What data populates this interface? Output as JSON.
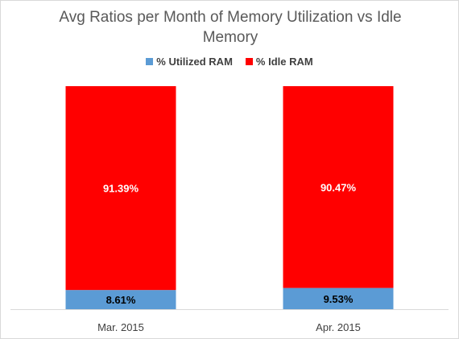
{
  "chart_data": {
    "type": "bar",
    "stacked": true,
    "title": "Avg Ratios per Month of Memory Utilization vs Idle Memory",
    "categories": [
      "Mar. 2015",
      "Apr. 2015"
    ],
    "series": [
      {
        "name": "% Utilized RAM",
        "values": [
          8.61,
          9.53
        ],
        "labels": [
          "8.61%",
          "9.53%"
        ],
        "color": "#5b9bd5",
        "label_color": "#000000"
      },
      {
        "name": "% Idle RAM",
        "values": [
          91.39,
          90.47
        ],
        "labels": [
          "91.39%",
          "90.47%"
        ],
        "color": "#ff0000",
        "label_color": "#ffffff"
      }
    ],
    "ylim": [
      0,
      100
    ],
    "legend": "top",
    "grid": false
  }
}
